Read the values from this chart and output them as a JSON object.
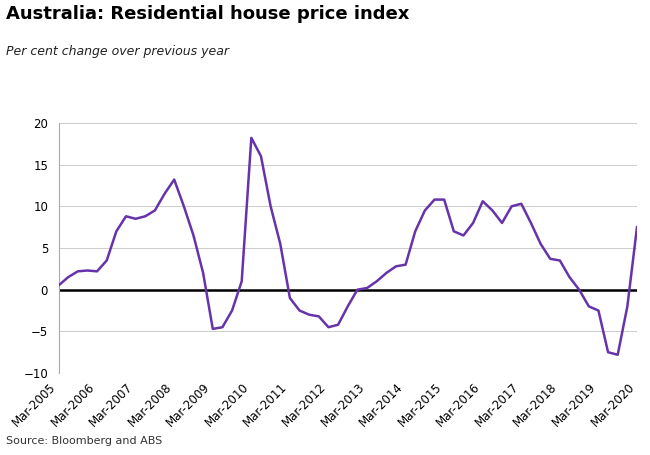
{
  "title": "Australia: Residential house price index",
  "subtitle": "Per cent change over previous year",
  "source": "Source: Bloomberg and ABS",
  "line_color": "#6633AA",
  "background_color": "#ffffff",
  "ylim": [
    -10,
    20
  ],
  "yticks": [
    -10,
    -5,
    0,
    5,
    10,
    15,
    20
  ],
  "x_labels": [
    "Mar-2005",
    "Mar-2006",
    "Mar-2007",
    "Mar-2008",
    "Mar-2009",
    "Mar-2010",
    "Mar-2011",
    "Mar-2012",
    "Mar-2013",
    "Mar-2014",
    "Mar-2015",
    "Mar-2016",
    "Mar-2017",
    "Mar-2018",
    "Mar-2019",
    "Mar-2020"
  ],
  "quarterly_values": [
    0.5,
    1.5,
    2.2,
    2.3,
    2.2,
    3.5,
    7.0,
    8.8,
    8.5,
    8.8,
    9.5,
    11.5,
    13.2,
    10.0,
    6.5,
    2.0,
    -4.7,
    -4.5,
    -2.5,
    1.0,
    18.2,
    16.0,
    10.0,
    5.5,
    -1.0,
    -2.5,
    -3.0,
    -3.2,
    -4.5,
    -4.2,
    -2.0,
    0.0,
    0.2,
    1.0,
    2.0,
    2.8,
    3.0,
    7.0,
    9.5,
    10.8,
    10.8,
    7.0,
    6.5,
    8.0,
    10.6,
    9.5,
    8.0,
    10.0,
    10.3,
    8.0,
    5.5,
    3.7,
    3.5,
    1.5,
    0.0,
    -2.0,
    -2.5,
    -7.5,
    -7.8,
    -2.0,
    7.5
  ],
  "title_fontsize": 13,
  "subtitle_fontsize": 9,
  "tick_fontsize": 8.5,
  "source_fontsize": 8
}
